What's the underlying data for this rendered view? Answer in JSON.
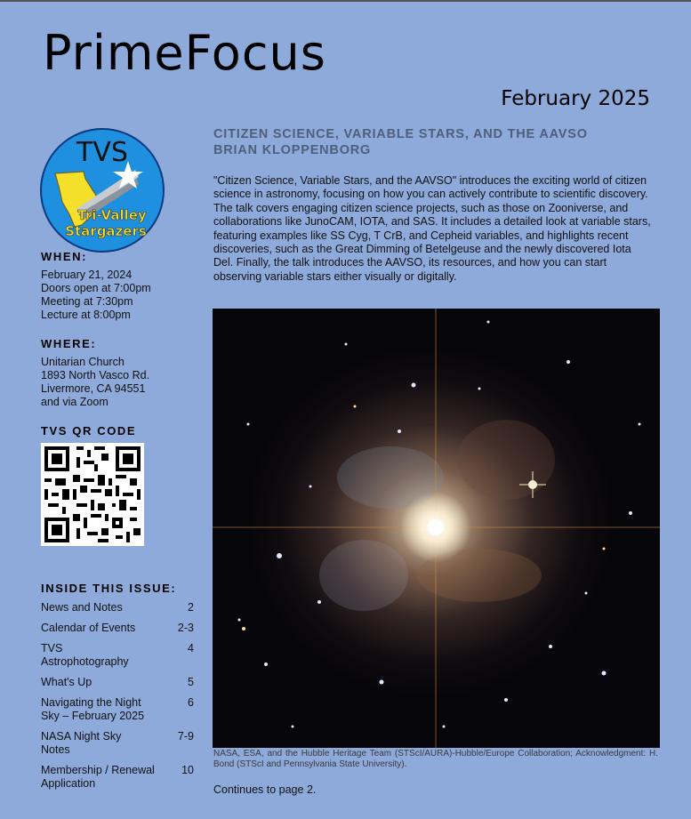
{
  "masthead": "PrimeFocus",
  "issue_date": "February 2025",
  "logo": {
    "text_top": "TVS",
    "text_bottom_1": "Tri-Valley",
    "text_bottom_2": "Stargazers"
  },
  "sidebar": {
    "when_heading": "WHEN:",
    "when_lines": [
      "February 21, 2024",
      "Doors open at 7:00pm",
      "Meeting at 7:30pm",
      "Lecture at 8:00pm"
    ],
    "where_heading": "WHERE:",
    "where_lines": [
      "Unitarian Church",
      "1893 North Vasco Rd.",
      "Livermore, CA 94551",
      "and via Zoom"
    ],
    "qr_heading": "TVS QR CODE"
  },
  "toc": {
    "heading": "INSIDE THIS ISSUE:",
    "items": [
      {
        "label": "News and Notes",
        "page": "2"
      },
      {
        "label": "Calendar of Events",
        "page": "2-3"
      },
      {
        "label": "TVS Astrophotography",
        "page": "4"
      },
      {
        "label": "What's Up",
        "page": "5"
      },
      {
        "label": "Navigating the Night Sky – February 2025",
        "page": "6"
      },
      {
        "label": "NASA Night Sky Notes",
        "page": "7-9"
      },
      {
        "label": "Membership / Renewal Application",
        "page": "10"
      }
    ]
  },
  "article": {
    "title_line1": "CITIZEN SCIENCE, VARIABLE STARS, AND THE AAVSO",
    "title_line2": "BRIAN KLOPPENBORG",
    "body": "\"Citizen Science, Variable Stars, and the AAVSO\" introduces the exciting world of citizen science in astronomy, focusing on how you can actively contribute to scientific discovery. The talk covers engaging citizen science projects, such as those on Zooniverse, and collaborations like JunoCAM, IOTA, and SAS. It includes a detailed look at variable stars, featuring examples like SS Cyg, T CrB, and Cepheid variables, and highlights recent discoveries, such as the Great Dimming of Betelgeuse and the newly discovered Iota Del. Finally, the talk introduces the AAVSO, its resources, and how you can start observing variable stars either visually or digitally.",
    "caption": "NASA, ESA, and the Hubble Heritage Team (STScI/AURA)-Hubble/Europe Collaboration; Acknowledgment: H. Bond (STScI and Pennsylvania State University).",
    "continues": "Continues to page 2."
  }
}
